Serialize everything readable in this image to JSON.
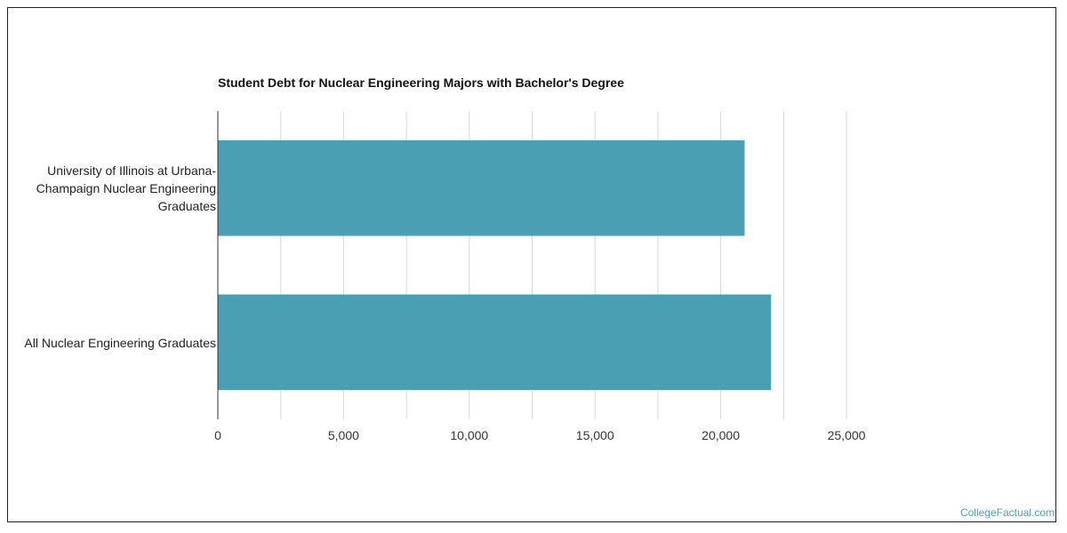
{
  "chart_data": {
    "type": "bar",
    "orientation": "horizontal",
    "title": "Student Debt for Nuclear Engineering Majors with Bachelor's Degree",
    "categories": [
      "University of Illinois at Urbana-Champaign Nuclear Engineering Graduates",
      "All Nuclear Engineering Graduates"
    ],
    "values": [
      20950,
      22000
    ],
    "xlim": [
      0,
      25000
    ],
    "xticks": [
      0,
      5000,
      10000,
      15000,
      20000,
      25000
    ],
    "xtick_labels": [
      "0",
      "5,000",
      "10,000",
      "15,000",
      "20,000",
      "25,000"
    ],
    "xlabel": "",
    "ylabel": "",
    "grid": true,
    "bar_color": "#4aa0b2"
  },
  "watermark": "CollegeFactual.com"
}
